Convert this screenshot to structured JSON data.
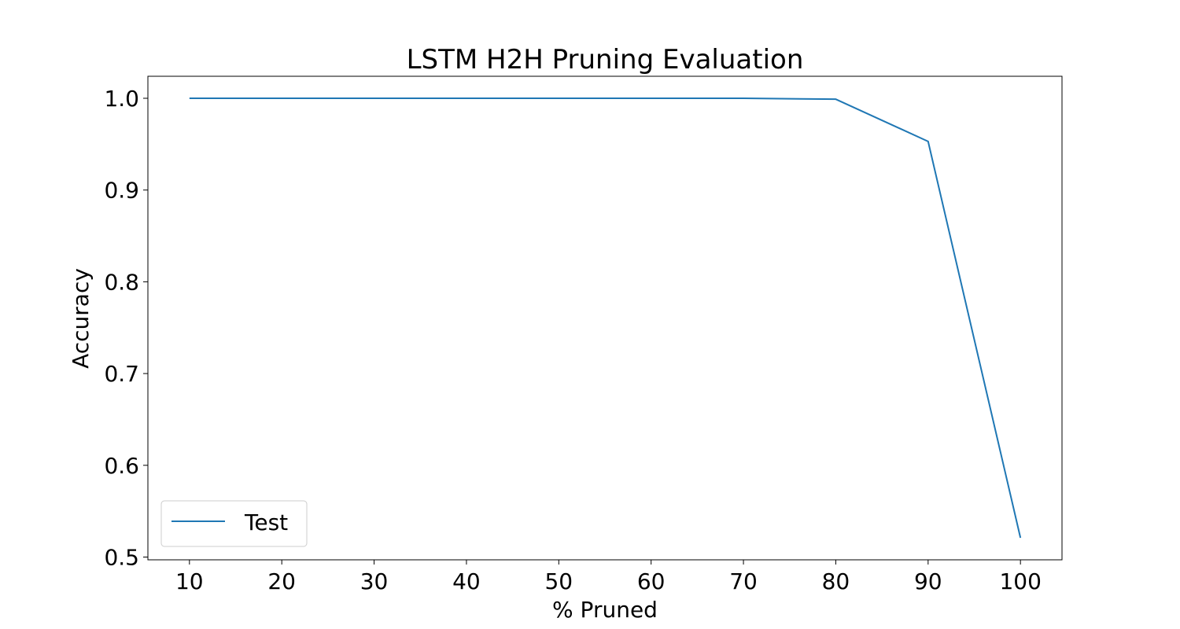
{
  "chart_data": {
    "type": "line",
    "title": "LSTM H2H Pruning Evaluation",
    "xlabel": "% Pruned",
    "ylabel": "Accuracy",
    "x": [
      10,
      20,
      30,
      40,
      50,
      60,
      70,
      80,
      90,
      100
    ],
    "xticks": [
      "10",
      "20",
      "30",
      "40",
      "50",
      "60",
      "70",
      "80",
      "90",
      "100"
    ],
    "yticks": [
      "0.5",
      "0.6",
      "0.7",
      "0.8",
      "0.9",
      "1.0"
    ],
    "xlim": [
      5.5,
      104.5
    ],
    "ylim": [
      0.497,
      1.024
    ],
    "series": [
      {
        "name": "Test",
        "color": "#1f77b4",
        "values": [
          1.0,
          1.0,
          1.0,
          1.0,
          1.0,
          1.0,
          1.0,
          0.999,
          0.953,
          0.521
        ]
      }
    ],
    "grid": false,
    "legend_position": "lower-left"
  }
}
